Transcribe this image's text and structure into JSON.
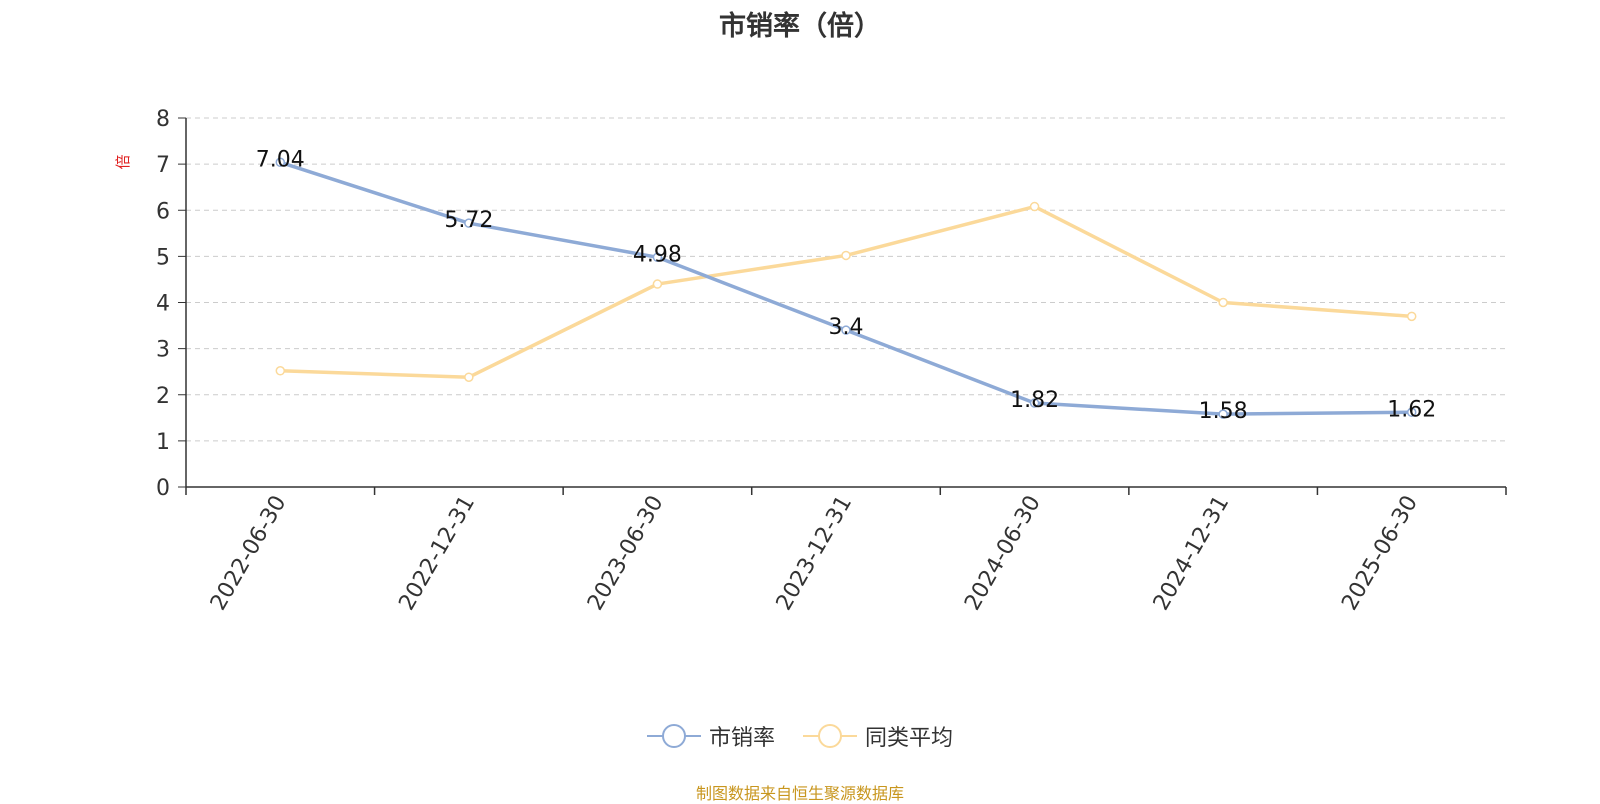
{
  "chart_data": {
    "type": "line",
    "title": "市销率（倍）",
    "ylabel": "倍",
    "categories": [
      "2022-06-30",
      "2022-12-31",
      "2023-06-30",
      "2023-12-31",
      "2024-06-30",
      "2024-12-31",
      "2025-06-30"
    ],
    "ylim": [
      0,
      8
    ],
    "yticks": [
      0,
      1,
      2,
      3,
      4,
      5,
      6,
      7,
      8
    ],
    "grid": true,
    "legend_position": "bottom",
    "series": [
      {
        "name": "市销率",
        "color": "#8eaad6",
        "values": [
          7.04,
          5.72,
          4.98,
          3.4,
          1.82,
          1.58,
          1.62
        ],
        "labels": [
          "7.04",
          "5.72",
          "4.98",
          "3.4",
          "1.82",
          "1.58",
          "1.62"
        ]
      },
      {
        "name": "同类平均",
        "color": "#fbd99a",
        "values": [
          2.52,
          2.38,
          4.4,
          5.02,
          6.08,
          4.0,
          3.7
        ]
      }
    ]
  },
  "source_note": "制图数据来自恒生聚源数据库"
}
